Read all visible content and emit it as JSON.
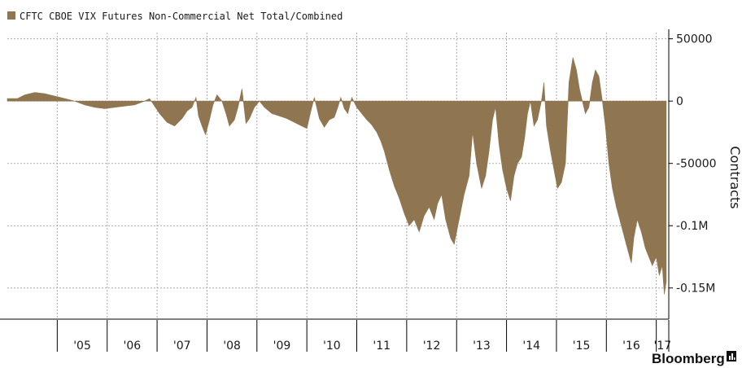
{
  "legend": {
    "label": "CFTC CBOE VIX Futures Non-Commercial Net Total/Combined",
    "swatch_color": "#8f7650"
  },
  "branding": {
    "text": "Bloomberg",
    "icon": "bloomberg-terminal-icon"
  },
  "colors": {
    "area": "#8f7650",
    "grid": "#a9a9a9",
    "axis": "#000000"
  },
  "chart_data": {
    "type": "area",
    "title": "",
    "ylabel": "Contracts",
    "xlabel": "",
    "ylim": [
      -175000,
      55000
    ],
    "grid": true,
    "legend_position": "top-left",
    "y_ticks": [
      {
        "value": 50000,
        "label": "50000"
      },
      {
        "value": 0,
        "label": "0"
      },
      {
        "value": -50000,
        "label": "-50000"
      },
      {
        "value": -100000,
        "label": "-0.1M"
      },
      {
        "value": -150000,
        "label": "-0.15M"
      }
    ],
    "x_labels": [
      "'05",
      "'06",
      "'07",
      "'08",
      "'09",
      "'10",
      "'11",
      "'12",
      "'13",
      "'14",
      "'15",
      "'16",
      "'17"
    ],
    "x_range": [
      2004.0,
      2017.25
    ],
    "series": [
      {
        "points": [
          [
            2004.0,
            2000
          ],
          [
            2004.2,
            2000
          ],
          [
            2004.35,
            5000
          ],
          [
            2004.55,
            7000
          ],
          [
            2004.75,
            6000
          ],
          [
            2004.95,
            4000
          ],
          [
            2005.15,
            2000
          ],
          [
            2005.35,
            0
          ],
          [
            2005.55,
            -3000
          ],
          [
            2005.75,
            -5000
          ],
          [
            2005.95,
            -6000
          ],
          [
            2006.15,
            -5000
          ],
          [
            2006.35,
            -4000
          ],
          [
            2006.55,
            -3000
          ],
          [
            2006.75,
            0
          ],
          [
            2006.85,
            2000
          ],
          [
            2006.95,
            -4000
          ],
          [
            2007.05,
            -10000
          ],
          [
            2007.2,
            -17000
          ],
          [
            2007.35,
            -20000
          ],
          [
            2007.5,
            -14000
          ],
          [
            2007.6,
            -8000
          ],
          [
            2007.7,
            -5000
          ],
          [
            2007.78,
            3000
          ],
          [
            2007.83,
            -12000
          ],
          [
            2007.9,
            -20000
          ],
          [
            2007.97,
            -27000
          ],
          [
            2008.05,
            -15000
          ],
          [
            2008.12,
            -3000
          ],
          [
            2008.2,
            5000
          ],
          [
            2008.3,
            0
          ],
          [
            2008.38,
            -10000
          ],
          [
            2008.45,
            -20000
          ],
          [
            2008.55,
            -15000
          ],
          [
            2008.62,
            -5000
          ],
          [
            2008.7,
            10000
          ],
          [
            2008.78,
            -18000
          ],
          [
            2008.85,
            -14000
          ],
          [
            2008.95,
            -5000
          ],
          [
            2009.05,
            0
          ],
          [
            2009.15,
            -5000
          ],
          [
            2009.3,
            -10000
          ],
          [
            2009.45,
            -12000
          ],
          [
            2009.6,
            -14000
          ],
          [
            2009.75,
            -17000
          ],
          [
            2009.9,
            -20000
          ],
          [
            2010.0,
            -22000
          ],
          [
            2010.08,
            -8000
          ],
          [
            2010.15,
            3000
          ],
          [
            2010.25,
            -14000
          ],
          [
            2010.35,
            -21000
          ],
          [
            2010.45,
            -15000
          ],
          [
            2010.55,
            -13000
          ],
          [
            2010.62,
            -5000
          ],
          [
            2010.68,
            3000
          ],
          [
            2010.75,
            -6000
          ],
          [
            2010.82,
            -10000
          ],
          [
            2010.9,
            3000
          ],
          [
            2011.0,
            -5000
          ],
          [
            2011.1,
            -10000
          ],
          [
            2011.2,
            -15000
          ],
          [
            2011.3,
            -19000
          ],
          [
            2011.4,
            -25000
          ],
          [
            2011.48,
            -32000
          ],
          [
            2011.55,
            -40000
          ],
          [
            2011.65,
            -55000
          ],
          [
            2011.75,
            -68000
          ],
          [
            2011.85,
            -78000
          ],
          [
            2011.95,
            -90000
          ],
          [
            2012.05,
            -100000
          ],
          [
            2012.15,
            -95000
          ],
          [
            2012.25,
            -105000
          ],
          [
            2012.35,
            -92000
          ],
          [
            2012.45,
            -85000
          ],
          [
            2012.55,
            -95000
          ],
          [
            2012.62,
            -82000
          ],
          [
            2012.7,
            -75000
          ],
          [
            2012.78,
            -95000
          ],
          [
            2012.88,
            -110000
          ],
          [
            2012.95,
            -115000
          ],
          [
            2013.05,
            -95000
          ],
          [
            2013.15,
            -75000
          ],
          [
            2013.25,
            -60000
          ],
          [
            2013.32,
            -25000
          ],
          [
            2013.4,
            -50000
          ],
          [
            2013.5,
            -70000
          ],
          [
            2013.58,
            -60000
          ],
          [
            2013.65,
            -40000
          ],
          [
            2013.72,
            -15000
          ],
          [
            2013.78,
            -5000
          ],
          [
            2013.85,
            -35000
          ],
          [
            2013.92,
            -55000
          ],
          [
            2014.0,
            -70000
          ],
          [
            2014.08,
            -80000
          ],
          [
            2014.15,
            -60000
          ],
          [
            2014.22,
            -50000
          ],
          [
            2014.3,
            -45000
          ],
          [
            2014.36,
            -30000
          ],
          [
            2014.42,
            -10000
          ],
          [
            2014.48,
            0
          ],
          [
            2014.55,
            -20000
          ],
          [
            2014.62,
            -15000
          ],
          [
            2014.7,
            0
          ],
          [
            2014.75,
            15000
          ],
          [
            2014.8,
            -20000
          ],
          [
            2014.88,
            -40000
          ],
          [
            2014.95,
            -55000
          ],
          [
            2015.02,
            -70000
          ],
          [
            2015.1,
            -65000
          ],
          [
            2015.18,
            -50000
          ],
          [
            2015.25,
            15000
          ],
          [
            2015.33,
            35000
          ],
          [
            2015.4,
            25000
          ],
          [
            2015.46,
            10000
          ],
          [
            2015.52,
            0
          ],
          [
            2015.58,
            -10000
          ],
          [
            2015.65,
            -5000
          ],
          [
            2015.72,
            15000
          ],
          [
            2015.78,
            25000
          ],
          [
            2015.85,
            20000
          ],
          [
            2015.92,
            0
          ],
          [
            2015.98,
            -20000
          ],
          [
            2016.05,
            -50000
          ],
          [
            2016.12,
            -70000
          ],
          [
            2016.2,
            -85000
          ],
          [
            2016.3,
            -100000
          ],
          [
            2016.4,
            -115000
          ],
          [
            2016.5,
            -130000
          ],
          [
            2016.55,
            -110000
          ],
          [
            2016.62,
            -95000
          ],
          [
            2016.7,
            -105000
          ],
          [
            2016.78,
            -118000
          ],
          [
            2016.85,
            -125000
          ],
          [
            2016.92,
            -132000
          ],
          [
            2017.0,
            -125000
          ],
          [
            2017.06,
            -140000
          ],
          [
            2017.12,
            -132000
          ],
          [
            2017.16,
            -155000
          ],
          [
            2017.2,
            -145000
          ]
        ]
      }
    ]
  }
}
